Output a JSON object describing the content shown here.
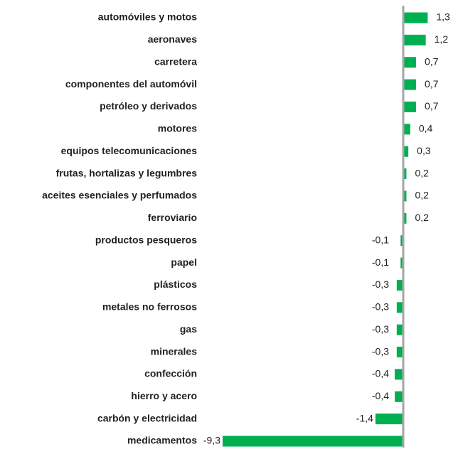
{
  "chart_data": {
    "type": "bar",
    "orientation": "horizontal",
    "categories": [
      "automóviles y motos",
      "aeronaves",
      "carretera",
      "componentes del automóvil",
      "petróleo y derivados",
      "motores",
      "equipos telecomunicaciones",
      "frutas, hortalizas y legumbres",
      "aceites esenciales y perfumados",
      "ferroviario",
      "productos pesqueros",
      "papel",
      "plásticos",
      "metales no ferrosos",
      "gas",
      "minerales",
      "confección",
      "hierro y acero",
      "carbón y electricidad",
      "medicamentos"
    ],
    "values": [
      1.3,
      1.2,
      0.7,
      0.7,
      0.7,
      0.4,
      0.3,
      0.2,
      0.2,
      0.2,
      -0.1,
      -0.1,
      -0.3,
      -0.3,
      -0.3,
      -0.3,
      -0.4,
      -0.4,
      -1.4,
      -9.3
    ],
    "value_labels": [
      "1,3",
      "1,2",
      "0,7",
      "0,7",
      "0,7",
      "0,4",
      "0,3",
      "0,2",
      "0,2",
      "0,2",
      "-0,1",
      "-0,1",
      "-0,3",
      "-0,3",
      "-0,3",
      "-0,3",
      "-0,4",
      "-0,4",
      "-1,4",
      "-9,3"
    ],
    "color": "#00b050"
  }
}
